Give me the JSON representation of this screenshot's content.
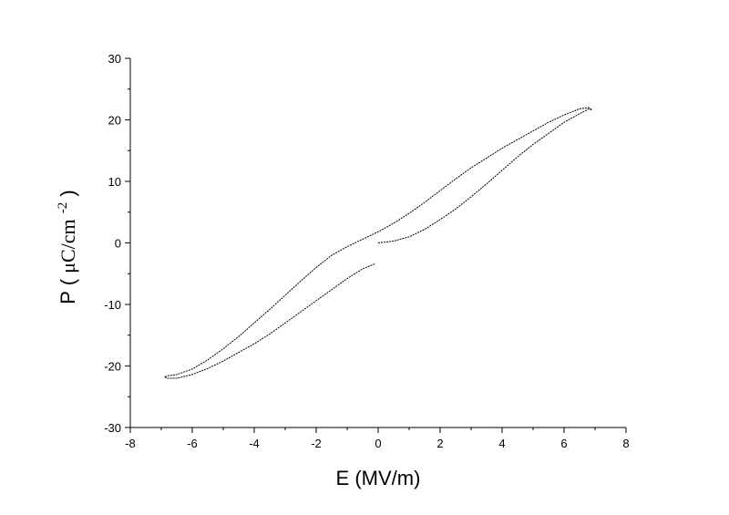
{
  "chart_data": {
    "type": "line",
    "title": "",
    "xlabel": "E (MV/m)",
    "ylabel": {
      "prefix": "P",
      "units_main": "μC/cm",
      "units_sup": "-2"
    },
    "xlim": [
      -8,
      8
    ],
    "ylim": [
      -30,
      30
    ],
    "x_ticks": [
      -8,
      -6,
      -4,
      -2,
      0,
      2,
      4,
      6,
      8
    ],
    "y_ticks": [
      -30,
      -20,
      -10,
      0,
      10,
      20,
      30
    ],
    "grid": false,
    "legend": "none",
    "line_color": "#000000",
    "series": [
      {
        "x": [
          0.0,
          0.5,
          1.0,
          1.5,
          2.0,
          2.5,
          3.0,
          3.5,
          4.0,
          4.5,
          5.0,
          5.5,
          6.0,
          6.5,
          6.8,
          6.9,
          6.8,
          6.5,
          6.0,
          5.5,
          5.0,
          4.5,
          4.0,
          3.5,
          3.0,
          2.5,
          2.0,
          1.5,
          1.0,
          0.5,
          0.0,
          -0.5,
          -1.0,
          -1.5,
          -2.0,
          -2.5,
          -3.0,
          -3.5,
          -4.0,
          -4.5,
          -5.0,
          -5.5,
          -6.0,
          -6.5,
          -6.8,
          -6.9,
          -6.8,
          -6.5,
          -6.0,
          -5.5,
          -5.0,
          -4.5,
          -4.0,
          -3.5,
          -3.0,
          -2.5,
          -2.0,
          -1.5,
          -1.0,
          -0.5,
          -0.1
        ],
        "y": [
          0.0,
          0.3,
          1.0,
          2.2,
          3.8,
          5.5,
          7.5,
          9.6,
          11.8,
          14.0,
          16.0,
          17.8,
          19.6,
          21.0,
          21.8,
          21.6,
          22.0,
          21.8,
          20.8,
          19.6,
          18.2,
          16.8,
          15.4,
          13.8,
          12.2,
          10.4,
          8.5,
          6.6,
          4.8,
          3.2,
          1.8,
          0.6,
          -0.6,
          -2.0,
          -4.0,
          -6.2,
          -8.5,
          -10.8,
          -13.0,
          -15.2,
          -17.2,
          -19.0,
          -20.5,
          -21.4,
          -21.6,
          -21.8,
          -22.0,
          -22.0,
          -21.4,
          -20.4,
          -19.2,
          -17.8,
          -16.4,
          -14.8,
          -13.0,
          -11.2,
          -9.4,
          -7.6,
          -5.8,
          -4.2,
          -3.4
        ]
      }
    ]
  }
}
